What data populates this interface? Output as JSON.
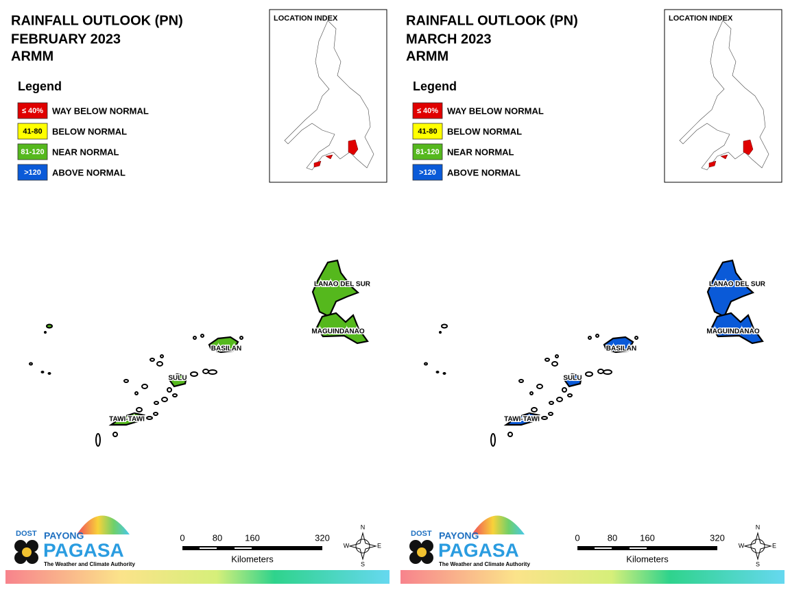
{
  "panels": [
    {
      "title": [
        "RAINFALL OUTLOOK (PN)",
        "FEBRUARY 2023",
        "ARMM"
      ],
      "location_index": "LOCATION INDEX",
      "legend": {
        "title": "Legend",
        "items": [
          {
            "key": "≤ 40%",
            "label": "WAY BELOW NORMAL",
            "color": "#e00000"
          },
          {
            "key": "41-80",
            "label": "BELOW NORMAL",
            "color": "#ffff00"
          },
          {
            "key": "81-120",
            "label": "NEAR NORMAL",
            "color": "#55b81d"
          },
          {
            "key": ">120",
            "label": "ABOVE NORMAL",
            "color": "#0a5ad8"
          }
        ]
      },
      "regions": [
        {
          "name": "LANAO DEL SUR",
          "color": "#55b81d"
        },
        {
          "name": "MAGUINDANAO",
          "color": "#55b81d"
        },
        {
          "name": "BASILAN",
          "color": "#55b81d"
        },
        {
          "name": "SULU",
          "color": "#55b81d"
        },
        {
          "name": "TAWI-TAWI",
          "color": "#55b81d"
        }
      ],
      "scale": {
        "ticks": [
          0,
          80,
          160,
          320
        ],
        "unit": "Kilometers"
      },
      "compass": [
        "N",
        "E",
        "S",
        "W"
      ],
      "logo": {
        "dost": "DOST",
        "payong": "PAYONG",
        "pagasa": "PAGASA",
        "tagline": "The Weather and Climate Authority"
      }
    },
    {
      "title": [
        "RAINFALL OUTLOOK (PN)",
        "MARCH 2023",
        "ARMM"
      ],
      "location_index": "LOCATION INDEX",
      "legend": {
        "title": "Legend",
        "items": [
          {
            "key": "≤ 40%",
            "label": "WAY BELOW NORMAL",
            "color": "#e00000"
          },
          {
            "key": "41-80",
            "label": "BELOW NORMAL",
            "color": "#ffff00"
          },
          {
            "key": "81-120",
            "label": "NEAR NORMAL",
            "color": "#55b81d"
          },
          {
            "key": ">120",
            "label": "ABOVE NORMAL",
            "color": "#0a5ad8"
          }
        ]
      },
      "regions": [
        {
          "name": "LANAO DEL SUR",
          "color": "#0a5ad8"
        },
        {
          "name": "MAGUINDANAO",
          "color": "#0a5ad8"
        },
        {
          "name": "BASILAN",
          "color": "#0a5ad8"
        },
        {
          "name": "SULU",
          "color": "#0a5ad8"
        },
        {
          "name": "TAWI-TAWI",
          "color": "#0a5ad8"
        }
      ],
      "scale": {
        "ticks": [
          0,
          80,
          160,
          320
        ],
        "unit": "Kilometers"
      },
      "compass": [
        "N",
        "E",
        "S",
        "W"
      ],
      "logo": {
        "dost": "DOST",
        "payong": "PAYONG",
        "pagasa": "PAGASA",
        "tagline": "The Weather and Climate Authority"
      }
    }
  ]
}
